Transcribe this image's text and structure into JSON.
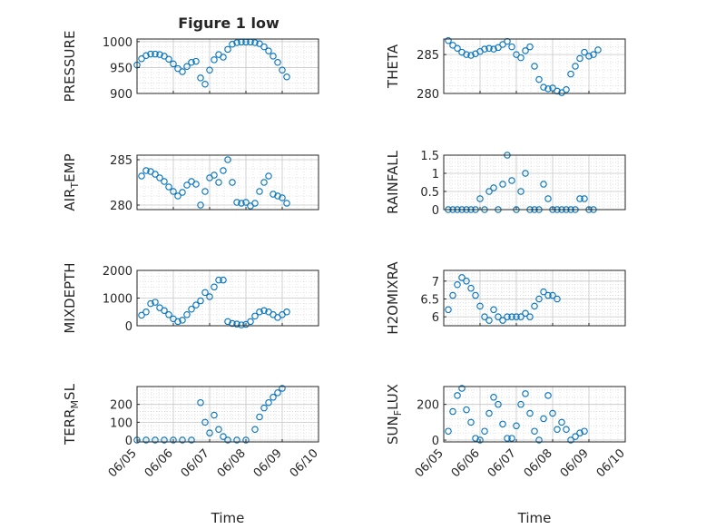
{
  "figure_title": "Figure 1 low",
  "marker_color": "#0072BD",
  "chart_data": [
    {
      "type": "scatter",
      "title": "Figure 1 low",
      "ylabel": "PRESSURE",
      "xlabel": "",
      "x_range": [
        "06/05",
        "06/10"
      ],
      "ylim": [
        900,
        1005
      ],
      "yticks": [
        900,
        950,
        1000
      ],
      "ytick_labels": [
        "900",
        "950",
        "1000"
      ],
      "grid": "on",
      "values": [
        [
          "06/05",
          955
        ],
        [
          "06/05 03:00",
          967
        ],
        [
          "06/05 06:00",
          973
        ],
        [
          "06/05 09:00",
          976
        ],
        [
          "06/05 12:00",
          976
        ],
        [
          "06/05 15:00",
          975
        ],
        [
          "06/05 18:00",
          972
        ],
        [
          "06/05 21:00",
          966
        ],
        [
          "06/06",
          957
        ],
        [
          "06/06 03:00",
          948
        ],
        [
          "06/06 06:00",
          942
        ],
        [
          "06/06 09:00",
          952
        ],
        [
          "06/06 12:00",
          960
        ],
        [
          "06/06 15:00",
          962
        ],
        [
          "06/06 18:00",
          930
        ],
        [
          "06/06 21:00",
          918
        ],
        [
          "06/07",
          945
        ],
        [
          "06/07 03:00",
          965
        ],
        [
          "06/07 06:00",
          975
        ],
        [
          "06/07 09:00",
          970
        ],
        [
          "06/07 12:00",
          985
        ],
        [
          "06/07 15:00",
          995
        ],
        [
          "06/07 18:00",
          998
        ],
        [
          "06/07 21:00",
          999
        ],
        [
          "06/08",
          999
        ],
        [
          "06/08 03:00",
          999
        ],
        [
          "06/08 06:00",
          998
        ],
        [
          "06/08 09:00",
          996
        ],
        [
          "06/08 12:00",
          990
        ],
        [
          "06/08 15:00",
          982
        ],
        [
          "06/08 18:00",
          972
        ],
        [
          "06/08 21:00",
          960
        ],
        [
          "06/09",
          945
        ],
        [
          "06/09 03:00",
          932
        ]
      ]
    },
    {
      "type": "scatter",
      "title": "",
      "ylabel": "THETA",
      "xlabel": "",
      "x_range": [
        "06/05",
        "06/10"
      ],
      "ylim": [
        280,
        287
      ],
      "yticks": [
        280,
        285
      ],
      "ytick_labels": [
        "280",
        "285"
      ],
      "grid": "on",
      "values": [
        [
          "06/05 03:00",
          286.8
        ],
        [
          "06/05 06:00",
          286.2
        ],
        [
          "06/05 09:00",
          285.8
        ],
        [
          "06/05 12:00",
          285.3
        ],
        [
          "06/05 15:00",
          285.0
        ],
        [
          "06/05 18:00",
          284.9
        ],
        [
          "06/05 21:00",
          285.1
        ],
        [
          "06/06",
          285.4
        ],
        [
          "06/06 03:00",
          285.7
        ],
        [
          "06/06 06:00",
          285.8
        ],
        [
          "06/06 09:00",
          285.7
        ],
        [
          "06/06 12:00",
          285.9
        ],
        [
          "06/06 15:00",
          286.3
        ],
        [
          "06/06 18:00",
          286.7
        ],
        [
          "06/06 21:00",
          286.0
        ],
        [
          "06/07",
          285.0
        ],
        [
          "06/07 03:00",
          284.6
        ],
        [
          "06/07 06:00",
          285.5
        ],
        [
          "06/07 09:00",
          286.0
        ],
        [
          "06/07 12:00",
          283.5
        ],
        [
          "06/07 15:00",
          281.8
        ],
        [
          "06/07 18:00",
          280.8
        ],
        [
          "06/07 21:00",
          280.6
        ],
        [
          "06/08",
          280.7
        ],
        [
          "06/08 03:00",
          280.3
        ],
        [
          "06/08 06:00",
          280.1
        ],
        [
          "06/08 09:00",
          280.5
        ],
        [
          "06/08 12:00",
          282.5
        ],
        [
          "06/08 15:00",
          283.5
        ],
        [
          "06/08 18:00",
          284.5
        ],
        [
          "06/08 21:00",
          285.3
        ],
        [
          "06/09",
          284.8
        ],
        [
          "06/09 03:00",
          285.0
        ],
        [
          "06/09 06:00",
          285.6
        ]
      ]
    },
    {
      "type": "scatter",
      "title": "",
      "ylabel": "AIR_TEMP",
      "xlabel": "",
      "x_range": [
        "06/05",
        "06/10"
      ],
      "ylim": [
        279.5,
        285.5
      ],
      "yticks": [
        280,
        285
      ],
      "ytick_labels": [
        "280",
        "285"
      ],
      "grid": "on",
      "values": [
        [
          "06/05 03:00",
          283.2
        ],
        [
          "06/05 06:00",
          283.8
        ],
        [
          "06/05 09:00",
          283.7
        ],
        [
          "06/05 12:00",
          283.4
        ],
        [
          "06/05 15:00",
          283.0
        ],
        [
          "06/05 18:00",
          282.6
        ],
        [
          "06/05 21:00",
          282.0
        ],
        [
          "06/06",
          281.5
        ],
        [
          "06/06 03:00",
          281.0
        ],
        [
          "06/06 06:00",
          281.4
        ],
        [
          "06/06 09:00",
          282.2
        ],
        [
          "06/06 12:00",
          282.6
        ],
        [
          "06/06 15:00",
          282.3
        ],
        [
          "06/06 18:00",
          280.0
        ],
        [
          "06/06 21:00",
          281.5
        ],
        [
          "06/07",
          283.0
        ],
        [
          "06/07 03:00",
          283.3
        ],
        [
          "06/07 06:00",
          282.5
        ],
        [
          "06/07 09:00",
          283.8
        ],
        [
          "06/07 12:00",
          285.0
        ],
        [
          "06/07 15:00",
          282.5
        ],
        [
          "06/07 18:00",
          280.3
        ],
        [
          "06/07 21:00",
          280.2
        ],
        [
          "06/08",
          280.3
        ],
        [
          "06/08 03:00",
          279.9
        ],
        [
          "06/08 06:00",
          280.2
        ],
        [
          "06/08 09:00",
          281.5
        ],
        [
          "06/08 12:00",
          282.5
        ],
        [
          "06/08 15:00",
          283.2
        ],
        [
          "06/08 18:00",
          281.2
        ],
        [
          "06/08 21:00",
          281.0
        ],
        [
          "06/09",
          280.8
        ],
        [
          "06/09 03:00",
          280.2
        ]
      ]
    },
    {
      "type": "scatter",
      "title": "",
      "ylabel": "RAINFALL",
      "xlabel": "",
      "x_range": [
        "06/05",
        "06/10"
      ],
      "ylim": [
        0,
        1.5
      ],
      "yticks": [
        0,
        0.5,
        1,
        1.5
      ],
      "ytick_labels": [
        "0",
        "0.5",
        "1",
        "1.5"
      ],
      "grid": "on",
      "values": [
        [
          "06/05 03:00",
          0
        ],
        [
          "06/05 06:00",
          0
        ],
        [
          "06/05 09:00",
          0
        ],
        [
          "06/05 12:00",
          0
        ],
        [
          "06/05 15:00",
          0
        ],
        [
          "06/05 18:00",
          0
        ],
        [
          "06/05 21:00",
          0
        ],
        [
          "06/06",
          0.3
        ],
        [
          "06/06 03:00",
          0
        ],
        [
          "06/06 06:00",
          0.5
        ],
        [
          "06/06 09:00",
          0.6
        ],
        [
          "06/06 12:00",
          0
        ],
        [
          "06/06 15:00",
          0.7
        ],
        [
          "06/06 18:00",
          1.5
        ],
        [
          "06/06 21:00",
          0.8
        ],
        [
          "06/07",
          0
        ],
        [
          "06/07 03:00",
          0.5
        ],
        [
          "06/07 06:00",
          1.0
        ],
        [
          "06/07 09:00",
          0
        ],
        [
          "06/07 12:00",
          0
        ],
        [
          "06/07 15:00",
          0
        ],
        [
          "06/07 18:00",
          0.7
        ],
        [
          "06/07 21:00",
          0.3
        ],
        [
          "06/08",
          0
        ],
        [
          "06/08 03:00",
          0
        ],
        [
          "06/08 06:00",
          0
        ],
        [
          "06/08 09:00",
          0
        ],
        [
          "06/08 12:00",
          0
        ],
        [
          "06/08 15:00",
          0
        ],
        [
          "06/08 18:00",
          0.3
        ],
        [
          "06/08 21:00",
          0.3
        ],
        [
          "06/09",
          0
        ],
        [
          "06/09 03:00",
          0
        ]
      ]
    },
    {
      "type": "scatter",
      "title": "",
      "ylabel": "MIXDEPTH",
      "xlabel": "",
      "x_range": [
        "06/05",
        "06/10"
      ],
      "ylim": [
        0,
        2000
      ],
      "yticks": [
        0,
        1000,
        2000
      ],
      "ytick_labels": [
        "0",
        "1000",
        "2000"
      ],
      "grid": "on",
      "values": [
        [
          "06/05 03:00",
          380
        ],
        [
          "06/05 06:00",
          500
        ],
        [
          "06/05 09:00",
          800
        ],
        [
          "06/05 12:00",
          850
        ],
        [
          "06/05 15:00",
          650
        ],
        [
          "06/05 18:00",
          550
        ],
        [
          "06/05 21:00",
          400
        ],
        [
          "06/06",
          250
        ],
        [
          "06/06 03:00",
          150
        ],
        [
          "06/06 06:00",
          200
        ],
        [
          "06/06 09:00",
          400
        ],
        [
          "06/06 12:00",
          600
        ],
        [
          "06/06 15:00",
          750
        ],
        [
          "06/06 18:00",
          900
        ],
        [
          "06/06 21:00",
          1200
        ],
        [
          "06/07",
          1050
        ],
        [
          "06/07 03:00",
          1400
        ],
        [
          "06/07 06:00",
          1650
        ],
        [
          "06/07 09:00",
          1650
        ],
        [
          "06/07 12:00",
          150
        ],
        [
          "06/07 15:00",
          80
        ],
        [
          "06/07 18:00",
          60
        ],
        [
          "06/07 21:00",
          30
        ],
        [
          "06/08",
          50
        ],
        [
          "06/08 03:00",
          150
        ],
        [
          "06/08 06:00",
          350
        ],
        [
          "06/08 09:00",
          500
        ],
        [
          "06/08 12:00",
          550
        ],
        [
          "06/08 15:00",
          500
        ],
        [
          "06/08 18:00",
          400
        ],
        [
          "06/08 21:00",
          300
        ],
        [
          "06/09",
          400
        ],
        [
          "06/09 03:00",
          500
        ]
      ]
    },
    {
      "type": "scatter",
      "title": "",
      "ylabel": "H2OMIXRA",
      "xlabel": "",
      "x_range": [
        "06/05",
        "06/10"
      ],
      "ylim": [
        5.75,
        7.3
      ],
      "yticks": [
        6,
        6.5,
        7
      ],
      "ytick_labels": [
        "6",
        "6.5",
        "7"
      ],
      "grid": "on",
      "values": [
        [
          "06/05 03:00",
          6.2
        ],
        [
          "06/05 06:00",
          6.6
        ],
        [
          "06/05 09:00",
          6.9
        ],
        [
          "06/05 12:00",
          7.1
        ],
        [
          "06/05 15:00",
          7.0
        ],
        [
          "06/05 18:00",
          6.8
        ],
        [
          "06/05 21:00",
          6.6
        ],
        [
          "06/06",
          6.3
        ],
        [
          "06/06 03:00",
          6.0
        ],
        [
          "06/06 06:00",
          5.9
        ],
        [
          "06/06 09:00",
          6.2
        ],
        [
          "06/06 12:00",
          6.0
        ],
        [
          "06/06 15:00",
          5.9
        ],
        [
          "06/06 18:00",
          6.0
        ],
        [
          "06/06 21:00",
          6.0
        ],
        [
          "06/07",
          6.0
        ],
        [
          "06/07 03:00",
          6.0
        ],
        [
          "06/07 06:00",
          6.1
        ],
        [
          "06/07 09:00",
          6.0
        ],
        [
          "06/07 12:00",
          6.3
        ],
        [
          "06/07 15:00",
          6.5
        ],
        [
          "06/07 18:00",
          6.7
        ],
        [
          "06/07 21:00",
          6.6
        ],
        [
          "06/08",
          6.6
        ],
        [
          "06/08 03:00",
          6.5
        ]
      ]
    },
    {
      "type": "scatter",
      "title": "",
      "ylabel": "TERR_MSL",
      "xlabel": "Time",
      "x_range": [
        "06/05",
        "06/10"
      ],
      "ylim": [
        -10,
        300
      ],
      "yticks": [
        0,
        100,
        200
      ],
      "ytick_labels": [
        "0",
        "100",
        "200"
      ],
      "xtick_labels": [
        "06/05",
        "06/06",
        "06/07",
        "06/08",
        "06/09",
        "06/10"
      ],
      "grid": "on",
      "values": [
        [
          "06/05",
          0
        ],
        [
          "06/05 06:00",
          0
        ],
        [
          "06/05 12:00",
          0
        ],
        [
          "06/05 18:00",
          0
        ],
        [
          "06/06",
          0
        ],
        [
          "06/06 06:00",
          0
        ],
        [
          "06/06 12:00",
          0
        ],
        [
          "06/06 18:00",
          210
        ],
        [
          "06/06 21:00",
          100
        ],
        [
          "06/07",
          40
        ],
        [
          "06/07 03:00",
          140
        ],
        [
          "06/07 06:00",
          60
        ],
        [
          "06/07 09:00",
          20
        ],
        [
          "06/07 12:00",
          0
        ],
        [
          "06/07 18:00",
          0
        ],
        [
          "06/08",
          0
        ],
        [
          "06/08 06:00",
          60
        ],
        [
          "06/08 09:00",
          130
        ],
        [
          "06/08 12:00",
          180
        ],
        [
          "06/08 15:00",
          210
        ],
        [
          "06/08 18:00",
          240
        ],
        [
          "06/08 21:00",
          265
        ],
        [
          "06/09",
          290
        ]
      ]
    },
    {
      "type": "scatter",
      "title": "",
      "ylabel": "SUN_FLUX",
      "xlabel": "Time",
      "x_range": [
        "06/05",
        "06/10"
      ],
      "ylim": [
        -10,
        300
      ],
      "yticks": [
        0,
        200
      ],
      "ytick_labels": [
        "0",
        "200"
      ],
      "xtick_labels": [
        "06/05",
        "06/06",
        "06/07",
        "06/08",
        "06/09",
        "06/10"
      ],
      "grid": "on",
      "values": [
        [
          "06/05 03:00",
          50
        ],
        [
          "06/05 06:00",
          160
        ],
        [
          "06/05 09:00",
          250
        ],
        [
          "06/05 12:00",
          290
        ],
        [
          "06/05 15:00",
          170
        ],
        [
          "06/05 18:00",
          100
        ],
        [
          "06/05 21:00",
          10
        ],
        [
          "06/06",
          0
        ],
        [
          "06/06 03:00",
          50
        ],
        [
          "06/06 06:00",
          150
        ],
        [
          "06/06 09:00",
          240
        ],
        [
          "06/06 12:00",
          200
        ],
        [
          "06/06 15:00",
          90
        ],
        [
          "06/06 18:00",
          10
        ],
        [
          "06/06 21:00",
          10
        ],
        [
          "06/07",
          80
        ],
        [
          "06/07 03:00",
          200
        ],
        [
          "06/07 06:00",
          260
        ],
        [
          "06/07 09:00",
          150
        ],
        [
          "06/07 12:00",
          50
        ],
        [
          "06/07 15:00",
          0
        ],
        [
          "06/07 18:00",
          120
        ],
        [
          "06/07 21:00",
          250
        ],
        [
          "06/08",
          150
        ],
        [
          "06/08 03:00",
          60
        ],
        [
          "06/08 06:00",
          100
        ],
        [
          "06/08 09:00",
          60
        ],
        [
          "06/08 12:00",
          0
        ],
        [
          "06/08 15:00",
          20
        ],
        [
          "06/08 18:00",
          40
        ],
        [
          "06/08 21:00",
          50
        ]
      ]
    }
  ]
}
